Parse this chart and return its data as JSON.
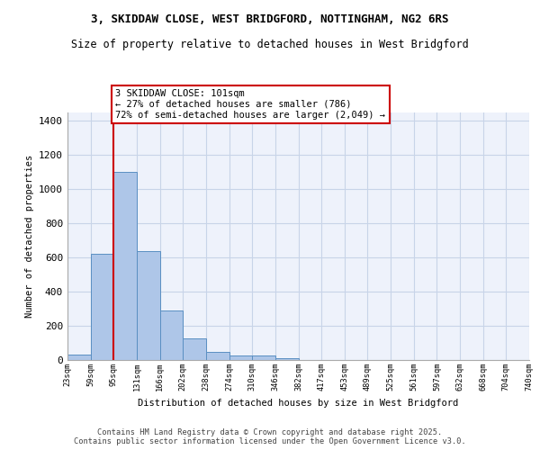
{
  "title_line1": "3, SKIDDAW CLOSE, WEST BRIDGFORD, NOTTINGHAM, NG2 6RS",
  "title_line2": "Size of property relative to detached houses in West Bridgford",
  "xlabel": "Distribution of detached houses by size in West Bridgford",
  "ylabel": "Number of detached properties",
  "bin_labels": [
    "23sqm",
    "59sqm",
    "95sqm",
    "131sqm",
    "166sqm",
    "202sqm",
    "238sqm",
    "274sqm",
    "310sqm",
    "346sqm",
    "382sqm",
    "417sqm",
    "453sqm",
    "489sqm",
    "525sqm",
    "561sqm",
    "597sqm",
    "632sqm",
    "668sqm",
    "704sqm",
    "740sqm"
  ],
  "bar_values": [
    30,
    620,
    1100,
    640,
    290,
    125,
    50,
    25,
    25,
    10,
    0,
    0,
    0,
    0,
    0,
    0,
    0,
    0,
    0,
    0
  ],
  "bar_color": "#aec6e8",
  "bar_edge_color": "#5a8fc2",
  "annotation_text": "3 SKIDDAW CLOSE: 101sqm\n← 27% of detached houses are smaller (786)\n72% of semi-detached houses are larger (2,049) →",
  "annotation_box_color": "#ffffff",
  "annotation_box_edge": "#cc0000",
  "vline_color": "#cc0000",
  "background_color": "#eef2fb",
  "grid_color": "#c8d4e8",
  "footer_text": "Contains HM Land Registry data © Crown copyright and database right 2025.\nContains public sector information licensed under the Open Government Licence v3.0.",
  "ylim": [
    0,
    1450
  ],
  "yticks": [
    0,
    200,
    400,
    600,
    800,
    1000,
    1200,
    1400
  ],
  "title_fontsize": 9,
  "subtitle_fontsize": 8.5
}
